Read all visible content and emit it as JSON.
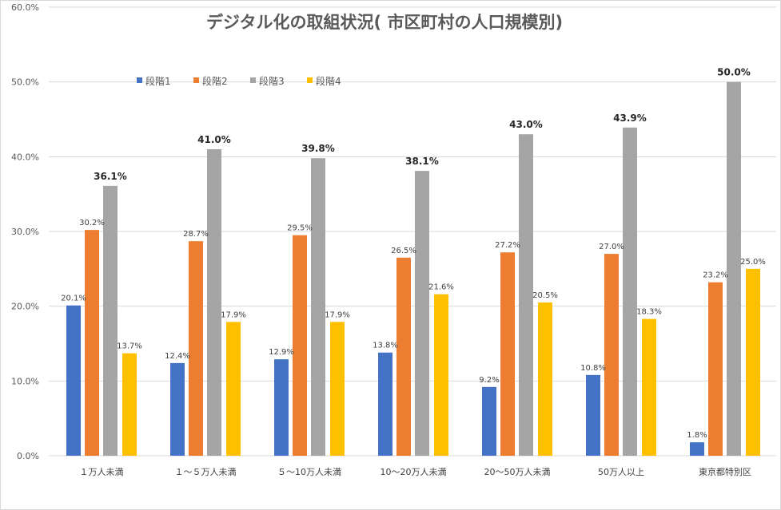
{
  "chart_data": {
    "type": "bar",
    "title": "デジタル化の取組状況（市区町村の人口規模別）",
    "title_display": "デジタル化の取組状況( 市区町村の人口規模別)",
    "xlabel": "",
    "ylabel": "",
    "ylim": [
      0,
      60
    ],
    "yticks": [
      "0.0%",
      "10.0%",
      "20.0%",
      "30.0%",
      "40.0%",
      "50.0%",
      "60.0%"
    ],
    "grid": true,
    "legend_position": "top-left",
    "categories": [
      "１万人未満",
      "１～５万人未満",
      "５～10万人未満",
      "10～20万人未満",
      "20～50万人未満",
      "50万人以上",
      "東京都特別区"
    ],
    "series": [
      {
        "name": "段階1",
        "color": "#4472C4",
        "values": [
          20.1,
          12.4,
          12.9,
          13.8,
          9.2,
          10.8,
          1.8
        ]
      },
      {
        "name": "段階2",
        "color": "#ED7D31",
        "values": [
          30.2,
          28.7,
          29.5,
          26.5,
          27.2,
          27.0,
          23.2
        ]
      },
      {
        "name": "段階3",
        "color": "#A5A5A5",
        "values": [
          36.1,
          41.0,
          39.8,
          38.1,
          43.0,
          43.9,
          50.0
        ]
      },
      {
        "name": "段階4",
        "color": "#FFC000",
        "values": [
          13.7,
          17.9,
          17.9,
          21.6,
          20.5,
          18.3,
          25.0
        ]
      }
    ]
  }
}
